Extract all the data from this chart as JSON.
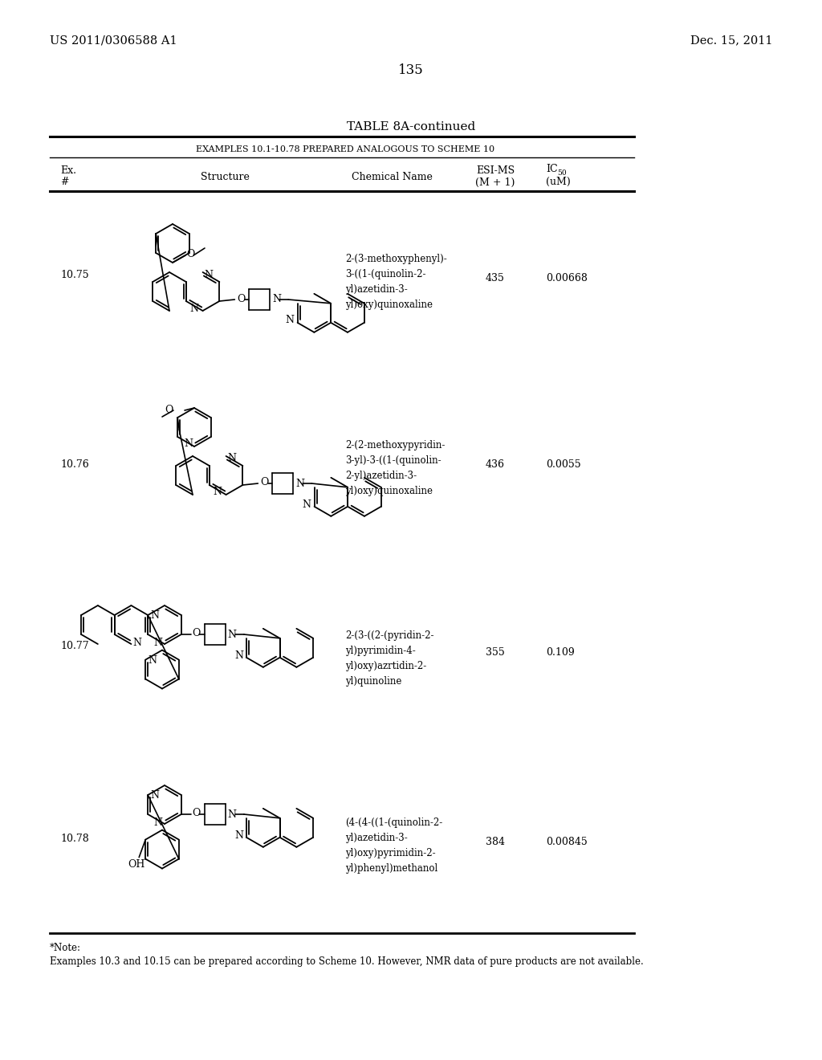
{
  "patent_number": "US 2011/0306588 A1",
  "patent_date": "Dec. 15, 2011",
  "page_number": "135",
  "table_title": "TABLE 8A-continued",
  "table_subtitle": "EXAMPLES 10.1-10.78 PREPARED ANALOGOUS TO SCHEME 10",
  "rows": [
    {
      "ex_num": "10.75",
      "chem_name": "2-(3-methoxyphenyl)-\n3-((1-(quinolin-2-\nyl)azetidin-3-\nyl)oxy)quinoxaline",
      "esi_ms": "435",
      "ic50": "0.00668"
    },
    {
      "ex_num": "10.76",
      "chem_name": "2-(2-methoxypyridin-\n3-yl)-3-((1-(quinolin-\n2-yl)azetidin-3-\nyl)oxy)quinoxaline",
      "esi_ms": "436",
      "ic50": "0.0055"
    },
    {
      "ex_num": "10.77",
      "chem_name": "2-(3-((2-(pyridin-2-\nyl)pyrimidin-4-\nyl)oxy)azrtidin-2-\nyl)quinoline",
      "esi_ms": "355",
      "ic50": "0.109"
    },
    {
      "ex_num": "10.78",
      "chem_name": "(4-(4-((1-(quinolin-2-\nyl)azetidin-3-\nyl)oxy)pyrimidin-2-\nyl)phenyl)methanol",
      "esi_ms": "384",
      "ic50": "0.00845"
    }
  ],
  "footnote_star": "*Note:",
  "footnote_text": "Examples 10.3 and 10.15 can be prepared according to Scheme 10. However, NMR data of pure products are not available.",
  "bg_color": "#ffffff",
  "text_color": "#000000"
}
